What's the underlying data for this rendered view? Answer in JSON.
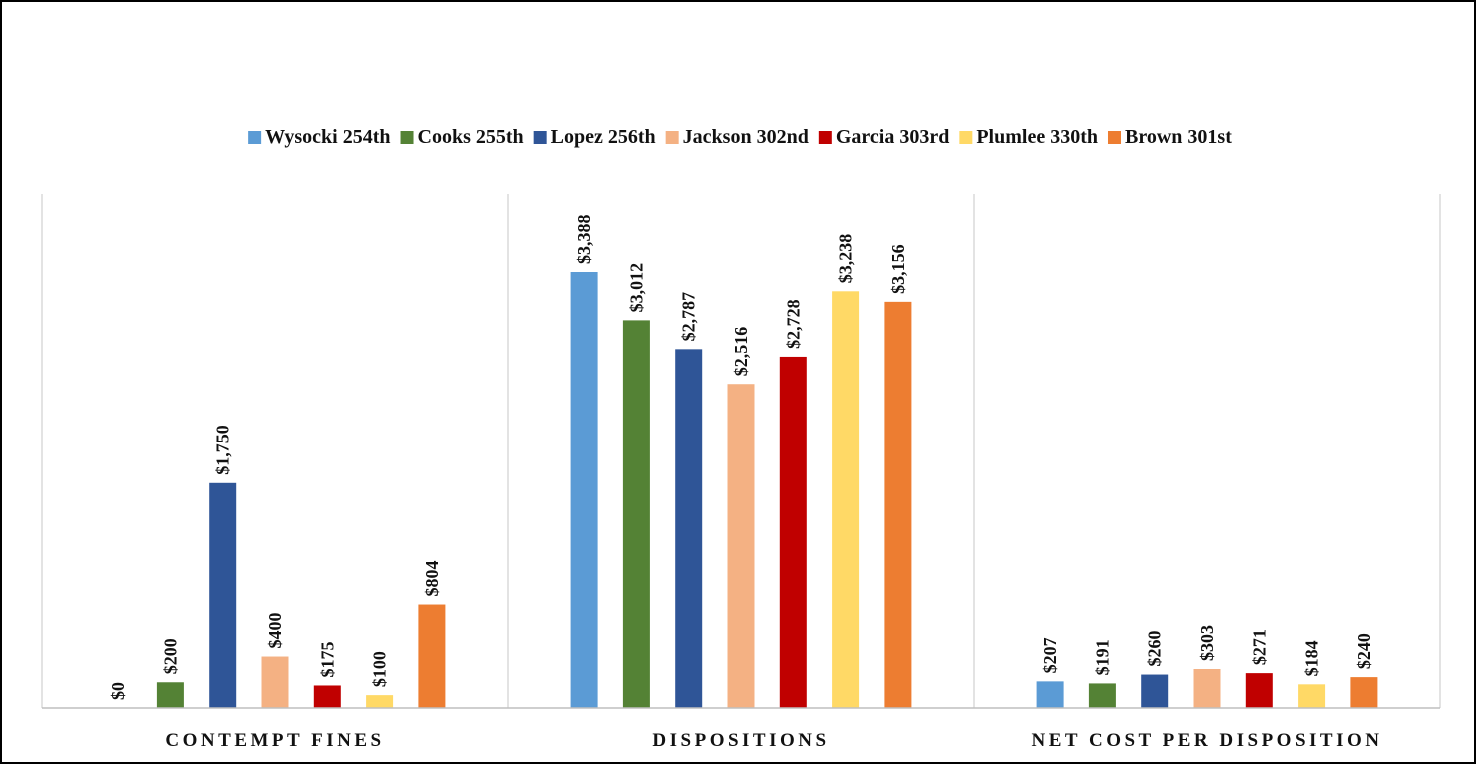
{
  "chart_data": {
    "type": "bar",
    "categories": [
      "CONTEMPT FINES",
      "DISPOSITIONS",
      "NET COST PER DISPOSITION"
    ],
    "series": [
      {
        "name": "Wysocki 254th",
        "color": "#5B9BD5",
        "values": [
          0,
          3388,
          207
        ],
        "labels": [
          "$0",
          "$3,388",
          "$207"
        ]
      },
      {
        "name": "Cooks 255th",
        "color": "#548235",
        "values": [
          200,
          3012,
          191
        ],
        "labels": [
          "$200",
          "$3,012",
          "$191"
        ]
      },
      {
        "name": "Lopez 256th",
        "color": "#2F5597",
        "values": [
          1750,
          2787,
          260
        ],
        "labels": [
          "$1,750",
          "$2,787",
          "$260"
        ]
      },
      {
        "name": "Jackson 302nd",
        "color": "#F4B183",
        "values": [
          400,
          2516,
          303
        ],
        "labels": [
          "$400",
          "$2,516",
          "$303"
        ]
      },
      {
        "name": "Garcia 303rd",
        "color": "#C00000",
        "values": [
          175,
          2728,
          271
        ],
        "labels": [
          "$175",
          "$2,728",
          "$271"
        ]
      },
      {
        "name": "Plumlee 330th",
        "color": "#FFD966",
        "values": [
          100,
          3238,
          184
        ],
        "labels": [
          "$100",
          "$3,238",
          "$184"
        ]
      },
      {
        "name": "Brown 301st",
        "color": "#ED7D31",
        "values": [
          804,
          3156,
          240
        ],
        "labels": [
          "$804",
          "$3,156",
          "$240"
        ]
      }
    ],
    "ylim": [
      0,
      3400
    ],
    "legend_position": "top",
    "grid": false,
    "title": "",
    "xlabel": "",
    "ylabel": ""
  }
}
